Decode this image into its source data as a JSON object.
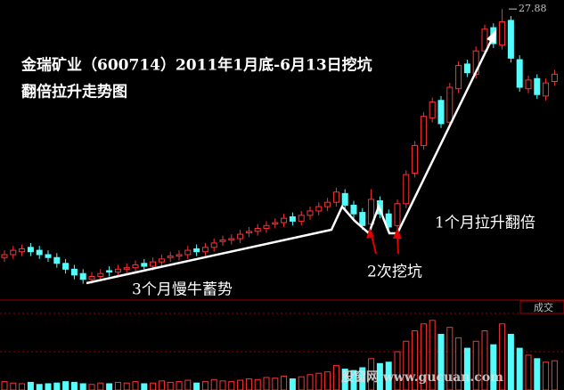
{
  "chart_data": {
    "type": "candlestick",
    "title": "金瑞矿业（600714）2011年1月底-6月13日挖坑",
    "subtitle": "翻倍拉升走势图",
    "annotations": [
      "3个月慢牛蓄势",
      "2次挖坑",
      "1个月拉升翻倍"
    ],
    "high_marker": 27.88,
    "volume_label": "成交",
    "watermark": "股窗网 www.gucuan.com",
    "up_color": "#ff3232",
    "down_color": "#54fcfc",
    "ylim": [
      8,
      28.5
    ],
    "open": [
      10.8,
      11.0,
      11.2,
      11.5,
      11.3,
      11.0,
      10.8,
      10.4,
      10.0,
      9.7,
      9.3,
      9.5,
      9.9,
      9.8,
      10.0,
      10.1,
      10.4,
      10.2,
      10.5,
      10.8,
      10.9,
      11.0,
      11.4,
      11.2,
      11.5,
      11.9,
      12.0,
      12.1,
      12.5,
      12.6,
      12.8,
      13.1,
      13.2,
      13.6,
      13.3,
      13.7,
      14.0,
      14.3,
      14.6,
      15.2,
      14.4,
      13.9,
      13.1,
      14.7,
      13.8,
      13.0,
      14.5,
      16.6,
      18.5,
      20.4,
      21.6,
      20.1,
      22.4,
      24.1,
      23.4,
      25.0,
      26.6,
      25.4,
      27.1,
      24.4,
      22.4,
      23.1,
      21.9,
      22.9
    ],
    "high": [
      11.3,
      11.6,
      11.7,
      11.8,
      11.6,
      11.3,
      11.1,
      10.7,
      10.3,
      10.0,
      9.8,
      10.0,
      10.2,
      10.3,
      10.4,
      10.6,
      10.7,
      10.8,
      11.0,
      11.2,
      11.3,
      11.6,
      11.7,
      11.8,
      12.1,
      12.3,
      12.4,
      12.7,
      12.9,
      13.1,
      13.3,
      13.5,
      13.8,
      13.9,
      14.0,
      14.3,
      14.6,
      14.9,
      15.6,
      15.5,
      14.7,
      14.2,
      15.5,
      15.0,
      14.1,
      14.8,
      16.8,
      18.8,
      20.8,
      21.8,
      21.9,
      22.8,
      24.3,
      24.4,
      25.3,
      26.8,
      26.9,
      27.88,
      27.4,
      24.7,
      23.3,
      23.4,
      23.1,
      23.7
    ],
    "low": [
      10.5,
      10.7,
      10.9,
      10.9,
      10.7,
      10.5,
      10.1,
      9.7,
      9.3,
      9.0,
      9.0,
      9.2,
      9.5,
      9.5,
      9.7,
      9.8,
      9.9,
      9.9,
      10.2,
      10.5,
      10.6,
      10.7,
      10.9,
      10.9,
      11.2,
      11.6,
      11.7,
      11.8,
      12.2,
      12.3,
      12.5,
      12.8,
      12.9,
      13.0,
      13.0,
      13.4,
      13.7,
      14.0,
      14.3,
      14.1,
      13.5,
      12.7,
      12.8,
      13.5,
      12.6,
      12.7,
      14.2,
      16.3,
      18.2,
      20.1,
      19.7,
      19.8,
      22.1,
      23.2,
      23.1,
      24.7,
      25.2,
      25.1,
      24.2,
      22.2,
      22.1,
      21.7,
      21.6,
      22.6
    ],
    "close": [
      11.0,
      11.3,
      11.4,
      11.2,
      11.0,
      10.8,
      10.4,
      10.0,
      9.6,
      9.3,
      9.5,
      9.7,
      9.8,
      10.0,
      10.1,
      10.3,
      10.2,
      10.5,
      10.7,
      10.9,
      11.0,
      11.3,
      11.2,
      11.5,
      11.8,
      12.0,
      12.1,
      12.4,
      12.6,
      12.8,
      13.0,
      13.2,
      13.5,
      13.3,
      13.7,
      14.0,
      14.3,
      14.6,
      15.3,
      14.4,
      13.8,
      13.0,
      14.8,
      13.8,
      12.9,
      14.5,
      16.5,
      18.5,
      20.5,
      21.5,
      20.0,
      22.5,
      24.0,
      23.5,
      25.0,
      26.5,
      25.5,
      27.0,
      24.5,
      22.5,
      23.0,
      22.0,
      22.8,
      23.4
    ],
    "volume": [
      12,
      10,
      9,
      11,
      8,
      9,
      10,
      12,
      11,
      9,
      8,
      10,
      9,
      11,
      10,
      12,
      9,
      10,
      13,
      11,
      12,
      14,
      10,
      12,
      15,
      13,
      12,
      14,
      16,
      15,
      18,
      17,
      20,
      16,
      19,
      22,
      24,
      26,
      35,
      30,
      28,
      32,
      45,
      38,
      40,
      55,
      70,
      85,
      95,
      100,
      80,
      90,
      75,
      60,
      70,
      85,
      65,
      95,
      80,
      60,
      50,
      45,
      40,
      42
    ],
    "volume_ylim": [
      0,
      110
    ]
  }
}
